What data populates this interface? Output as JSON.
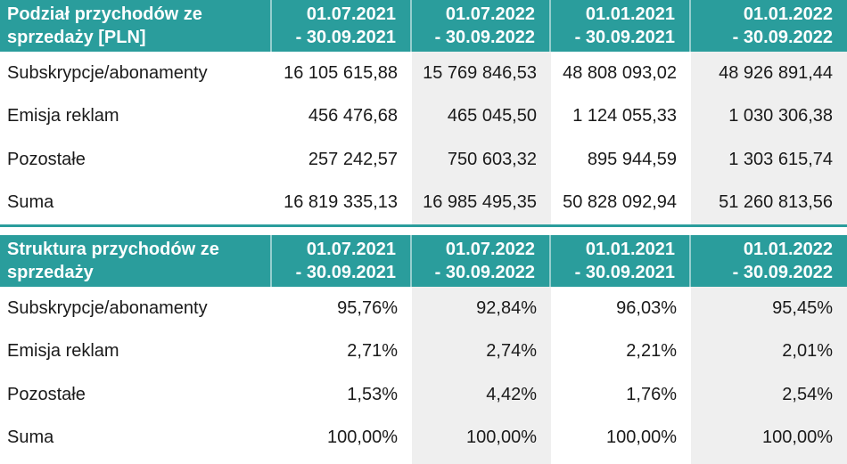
{
  "colors": {
    "accent_teal": "#2A9D9C",
    "stripe_grey": "#EFEFEF",
    "body_text": "#1A1A1A",
    "header_text": "#FFFFFF"
  },
  "tables": [
    {
      "title": "Podział przychodów ze sprzedaży [PLN]",
      "columns": [
        {
          "line1": "01.07.2021",
          "line2": "- 30.09.2021"
        },
        {
          "line1": "01.07.2022",
          "line2": "- 30.09.2022"
        },
        {
          "line1": "01.01.2021",
          "line2": "- 30.09.2021"
        },
        {
          "line1": "01.01.2022",
          "line2": "- 30.09.2022"
        }
      ],
      "rows": [
        {
          "label": "Subskrypcje/abonamenty",
          "values": [
            "16 105 615,88",
            "15 769 846,53",
            "48 808 093,02",
            "48 926 891,44"
          ]
        },
        {
          "label": "Emisja reklam",
          "values": [
            "456 476,68",
            "465 045,50",
            "1 124 055,33",
            "1 030 306,38"
          ]
        },
        {
          "label": "Pozostałe",
          "values": [
            "257 242,57",
            "750 603,32",
            "895 944,59",
            "1 303 615,74"
          ]
        },
        {
          "label": "Suma",
          "values": [
            "16 819 335,13",
            "16 985 495,35",
            "50 828 092,94",
            "51 260 813,56"
          ]
        }
      ]
    },
    {
      "title": "Struktura przychodów ze sprzedaży",
      "columns": [
        {
          "line1": "01.07.2021",
          "line2": "- 30.09.2021"
        },
        {
          "line1": "01.07.2022",
          "line2": "- 30.09.2022"
        },
        {
          "line1": "01.01.2021",
          "line2": "- 30.09.2021"
        },
        {
          "line1": "01.01.2022",
          "line2": "- 30.09.2022"
        }
      ],
      "rows": [
        {
          "label": "Subskrypcje/abonamenty",
          "values": [
            "95,76%",
            "92,84%",
            "96,03%",
            "95,45%"
          ]
        },
        {
          "label": "Emisja reklam",
          "values": [
            "2,71%",
            "2,74%",
            "2,21%",
            "2,01%"
          ]
        },
        {
          "label": "Pozostałe",
          "values": [
            "1,53%",
            "4,42%",
            "1,76%",
            "2,54%"
          ]
        },
        {
          "label": "Suma",
          "values": [
            "100,00%",
            "100,00%",
            "100,00%",
            "100,00%"
          ]
        }
      ]
    }
  ]
}
